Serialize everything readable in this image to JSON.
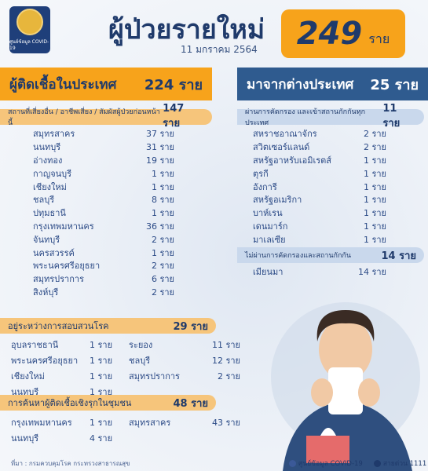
{
  "logo": {
    "text": "ศูนย์ข้อมูล COVID-19"
  },
  "header": {
    "title": "ผู้ป่วยรายใหม่",
    "date": "11 มกราคม 2564",
    "total": "249",
    "unit": "ราย"
  },
  "domestic": {
    "title": "ผู้ติดเชื้อในประเทศ",
    "count": "224 ราย",
    "high_risk": {
      "label": "สถานที่เสี่ยงอื่น / อาชีพเสี่ยง / สัมผัสผู้ป่วยก่อนหน้านี้",
      "count": "147 ราย",
      "rows": [
        {
          "name": "สมุทรสาคร",
          "value": "37 ราย"
        },
        {
          "name": "นนทบุรี",
          "value": "31 ราย"
        },
        {
          "name": "อ่างทอง",
          "value": "19 ราย"
        },
        {
          "name": "กาญจนบุรี",
          "value": "1 ราย"
        },
        {
          "name": "เชียงใหม่",
          "value": "1 ราย"
        },
        {
          "name": "ชลบุรี",
          "value": "8 ราย"
        },
        {
          "name": "ปทุมธานี",
          "value": "1 ราย"
        },
        {
          "name": "กรุงเทพมหานคร",
          "value": "36 ราย"
        },
        {
          "name": "จันทบุรี",
          "value": "2 ราย"
        },
        {
          "name": "นครสวรรค์",
          "value": "1 ราย"
        },
        {
          "name": "พระนครศรีอยุธยา",
          "value": "2 ราย"
        },
        {
          "name": "สมุทรปราการ",
          "value": "6 ราย"
        },
        {
          "name": "สิงห์บุรี",
          "value": "2 ราย"
        }
      ]
    },
    "investigating": {
      "label": "อยู่ระหว่างการสอบสวนโรค",
      "count": "29 ราย",
      "rows": [
        {
          "n1": "อุบลราชธานี",
          "v1": "1 ราย",
          "n2": "ระยอง",
          "v2": "11 ราย"
        },
        {
          "n1": "พระนครศรีอยุธยา",
          "v1": "1 ราย",
          "n2": "ชลบุรี",
          "v2": "12 ราย"
        },
        {
          "n1": "เชียงใหม่",
          "v1": "1 ราย",
          "n2": "สมุทรปราการ",
          "v2": "2 ราย"
        },
        {
          "n1": "นนทบุรี",
          "v1": "1 ราย",
          "n2": "",
          "v2": ""
        }
      ]
    },
    "active_search": {
      "label": "การค้นหาผู้ติดเชื้อเชิงรุกในชุมชน",
      "count": "48 ราย",
      "rows": [
        {
          "n1": "กรุงเทพมหานคร",
          "v1": "1 ราย",
          "n2": "สมุทรสาคร",
          "v2": "43 ราย"
        },
        {
          "n1": "นนทบุรี",
          "v1": "4 ราย",
          "n2": "",
          "v2": ""
        }
      ]
    }
  },
  "abroad": {
    "title": "มาจากต่างประเทศ",
    "count": "25 ราย",
    "quarantine": {
      "label": "ผ่านการคัดกรอง และเข้าสถานกักกันทุกประเทศ",
      "count": "11 ราย",
      "rows": [
        {
          "name": "สหราชอาณาจักร",
          "value": "2 ราย"
        },
        {
          "name": "สวิตเซอร์แลนด์",
          "value": "2 ราย"
        },
        {
          "name": "สหรัฐอาหรับเอมิเรตส์",
          "value": "1 ราย"
        },
        {
          "name": "ตุรกี",
          "value": "1 ราย"
        },
        {
          "name": "อังการี",
          "value": "1 ราย"
        },
        {
          "name": "สหรัฐอเมริกา",
          "value": "1 ราย"
        },
        {
          "name": "บาห์เรน",
          "value": "1 ราย"
        },
        {
          "name": "เดนมาร์ก",
          "value": "1 ราย"
        },
        {
          "name": "มาเลเซีย",
          "value": "1 ราย"
        }
      ]
    },
    "unscreened": {
      "label": "ไม่ผ่านการคัดกรองและสถานกักกัน",
      "count": "14 ราย",
      "rows": [
        {
          "name": "เมียนมา",
          "value": "14 ราย"
        }
      ]
    }
  },
  "footer": {
    "source": "ที่มา : กรมควบคุมโรค กระทรวงสาธารณสุข",
    "fb": "ศูนย์ข้อมูล COVID-19",
    "hotline": "สายด่วน 1111"
  },
  "colors": {
    "orange": "#f7a31b",
    "navy": "#1f3a6b",
    "blue": "#2f5b8f"
  }
}
